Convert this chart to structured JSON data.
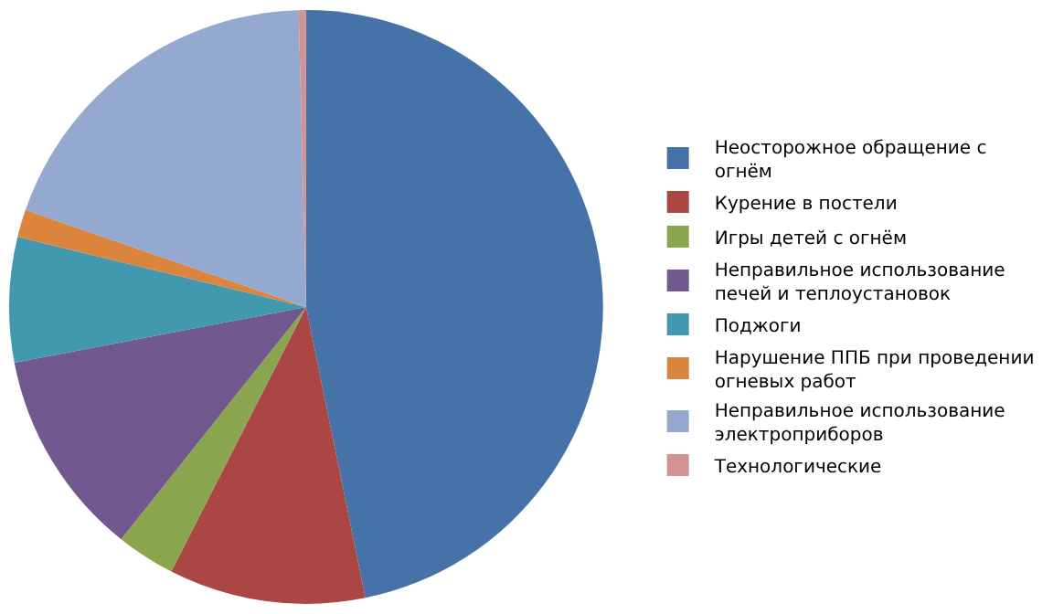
{
  "chart_data": {
    "type": "pie",
    "categories": [
      "Неосторожное обращение с огнём",
      "Курение в постели",
      "Игры детей с огнём",
      "Неправильное использование печей и теплоустановок",
      "Поджоги",
      "Нарушение ППБ при проведении огневых работ",
      "Неправильное использование электроприборов",
      "Технологические"
    ],
    "values": [
      46.8,
      10.7,
      3.2,
      11.3,
      6.8,
      1.5,
      19.3,
      0.4
    ],
    "colors": [
      "#4572a7",
      "#aa4643",
      "#89a54e",
      "#71588f",
      "#4198af",
      "#db843d",
      "#93a9cf",
      "#d19392"
    ],
    "legend": "right"
  }
}
